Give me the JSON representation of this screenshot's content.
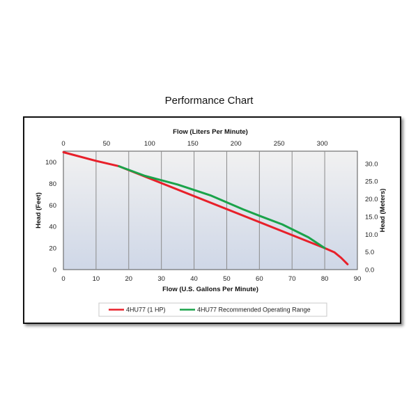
{
  "chart_data": {
    "type": "line",
    "title": "Performance Chart",
    "xlabel": "Flow (U.S. Gallons Per Minute)",
    "x2label": "Flow (Liters Per Minute)",
    "ylabel": "Head (Feet)",
    "y2label": "Head (Meters)",
    "xlim": [
      0,
      90
    ],
    "ylim": [
      0,
      110
    ],
    "x2lim": [
      0,
      340.7
    ],
    "y2lim": [
      0,
      33.5
    ],
    "x_ticks": [
      "0",
      "10",
      "20",
      "30",
      "40",
      "50",
      "60",
      "70",
      "80",
      "90"
    ],
    "y_ticks": [
      "0",
      "20",
      "40",
      "60",
      "80",
      "100"
    ],
    "x2_ticks": [
      "0",
      "50",
      "100",
      "150",
      "200",
      "250",
      "300"
    ],
    "y2_ticks": [
      "0.0",
      "5.0",
      "10.0",
      "15.0",
      "20.0",
      "25.0",
      "30.0"
    ],
    "grid": "vertical",
    "legend_position": "bottom",
    "series": [
      {
        "name": "4HU77 (1 HP)",
        "color": "#e8202a",
        "x": [
          0,
          10,
          17,
          80,
          83,
          85,
          87
        ],
        "y": [
          109,
          101,
          96,
          20,
          16,
          11,
          5
        ]
      },
      {
        "name": "4HU77 Recommended Operating Range",
        "color": "#1aa34a",
        "x": [
          17,
          25,
          35,
          45,
          55,
          60,
          67,
          75,
          80
        ],
        "y": [
          96,
          87,
          79,
          69,
          56,
          50,
          42,
          30,
          20
        ]
      }
    ]
  }
}
